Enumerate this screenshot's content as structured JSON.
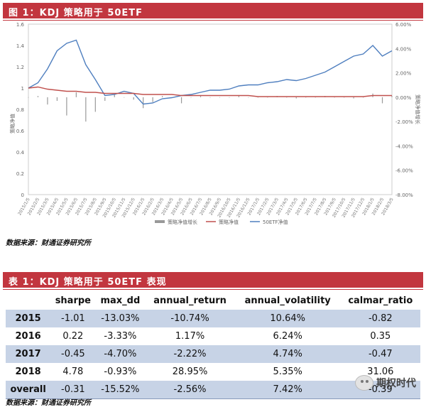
{
  "figure": {
    "title": "图 1：KDJ 策略用于 50ETF",
    "source": "数据来源：财通证券研究所"
  },
  "chart_data": {
    "type": "line",
    "x": [
      "2015/1/5",
      "2015/2/5",
      "2015/3/5",
      "2015/4/5",
      "2015/5/5",
      "2015/6/5",
      "2015/7/5",
      "2015/8/5",
      "2015/9/5",
      "2015/10/5",
      "2015/11/5",
      "2015/12/5",
      "2016/1/5",
      "2016/2/5",
      "2016/3/5",
      "2016/4/5",
      "2016/5/5",
      "2016/6/5",
      "2016/7/5",
      "2016/8/5",
      "2016/9/5",
      "2016/10/5",
      "2016/11/5",
      "2016/12/5",
      "2017/1/5",
      "2017/2/5",
      "2017/3/5",
      "2017/4/5",
      "2017/5/5",
      "2017/6/5",
      "2017/7/5",
      "2017/8/5",
      "2017/9/5",
      "2017/10/5",
      "2017/11/5",
      "2017/12/5",
      "2018/1/5",
      "2018/2/5",
      "2018/3/5"
    ],
    "series": [
      {
        "name": "策略净值增长",
        "axis": "right",
        "kind": "bar",
        "values": [
          0.0,
          0.1,
          -0.6,
          -0.3,
          -1.5,
          0.4,
          -2.0,
          -1.2,
          -0.3,
          0.2,
          0.0,
          -0.2,
          -0.9,
          -0.4,
          0.1,
          0.0,
          -0.5,
          0.0,
          0.1,
          0.0,
          0.0,
          0.0,
          0.1,
          0.0,
          0.0,
          0.0,
          0.1,
          0.0,
          -0.1,
          0.0,
          0.0,
          0.1,
          0.0,
          0.0,
          -0.1,
          0.0,
          0.3,
          -0.5,
          0.1
        ]
      },
      {
        "name": "策略净值",
        "axis": "left",
        "values": [
          1.0,
          1.01,
          0.99,
          0.98,
          0.97,
          0.97,
          0.96,
          0.96,
          0.95,
          0.95,
          0.95,
          0.95,
          0.94,
          0.94,
          0.94,
          0.94,
          0.93,
          0.93,
          0.93,
          0.93,
          0.93,
          0.93,
          0.93,
          0.93,
          0.92,
          0.92,
          0.92,
          0.92,
          0.92,
          0.92,
          0.92,
          0.92,
          0.92,
          0.92,
          0.92,
          0.92,
          0.93,
          0.93,
          0.93
        ]
      },
      {
        "name": "50ETF净值",
        "axis": "left",
        "values": [
          1.0,
          1.05,
          1.18,
          1.35,
          1.42,
          1.45,
          1.22,
          1.08,
          0.93,
          0.94,
          0.97,
          0.95,
          0.85,
          0.86,
          0.9,
          0.91,
          0.93,
          0.94,
          0.96,
          0.98,
          0.98,
          0.99,
          1.02,
          1.03,
          1.03,
          1.05,
          1.06,
          1.08,
          1.07,
          1.09,
          1.12,
          1.15,
          1.2,
          1.25,
          1.3,
          1.32,
          1.4,
          1.3,
          1.35
        ]
      }
    ],
    "yleft": {
      "min": 0,
      "max": 1.6,
      "ticks": [
        0,
        0.2,
        0.4,
        0.6,
        0.8,
        1,
        1.2,
        1.4,
        1.6
      ],
      "ylabel": "策略净值"
    },
    "yright": {
      "min": -8,
      "max": 6,
      "ticks": [
        "-8.00%",
        "-6.00%",
        "-4.00%",
        "-2.00%",
        "0.00%",
        "2.00%",
        "4.00%",
        "6.00%"
      ],
      "ylabel": "策略净值增长"
    },
    "legend": [
      "策略净值增长",
      "策略净值",
      "50ETF净值"
    ],
    "legend_position": "bottom",
    "colors": {
      "bars": "#999999",
      "strategy": "#c0504d",
      "etf": "#4f7fbf"
    }
  },
  "table": {
    "title": "表 1：KDJ 策略用于 50ETF 表现",
    "source": "数据来源：财通证券研究所",
    "columns": [
      "",
      "sharpe",
      "max_dd",
      "annual_return",
      "annual_volatility",
      "calmar_ratio"
    ],
    "rows": [
      [
        "2015",
        "-1.01",
        "-13.03%",
        "-10.74%",
        "10.64%",
        "-0.82"
      ],
      [
        "2016",
        "0.22",
        "-3.33%",
        "1.17%",
        "6.24%",
        "0.35"
      ],
      [
        "2017",
        "-0.45",
        "-4.70%",
        "-2.22%",
        "4.74%",
        "-0.47"
      ],
      [
        "2018",
        "4.78",
        "-0.93%",
        "28.95%",
        "5.35%",
        "31.06"
      ],
      [
        "overall",
        "-0.31",
        "-15.52%",
        "-2.56%",
        "7.42%",
        "-0.39"
      ]
    ]
  },
  "watermark": {
    "text": "期权时代",
    "icon": "wechat-bubble-icon"
  }
}
